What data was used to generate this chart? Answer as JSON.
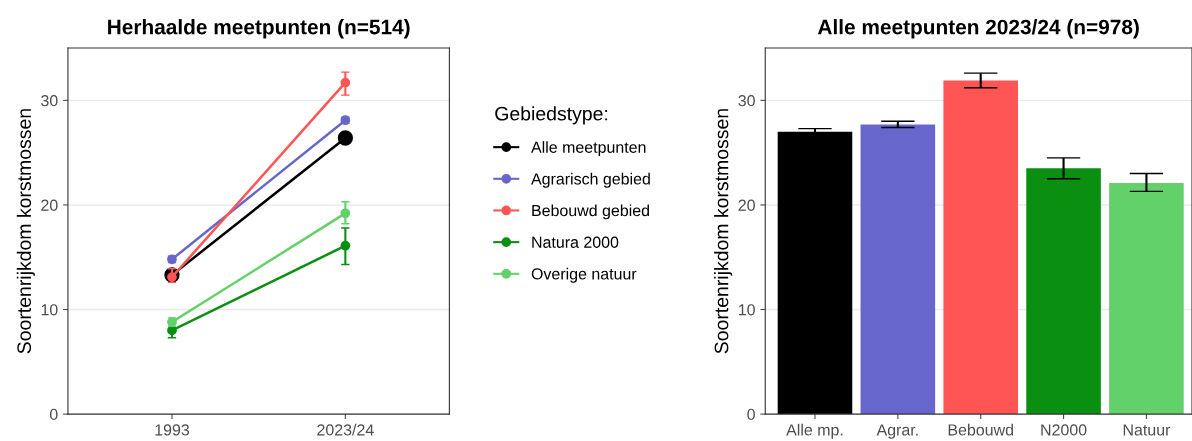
{
  "chart_data": [
    {
      "type": "line",
      "title": "Herhaalde meetpunten (n=514)",
      "ylabel": "Soortenrijkdom korstmossen",
      "categories": [
        "1993",
        "2023/24"
      ],
      "ylim": [
        0,
        35
      ],
      "yticks": [
        0,
        10,
        20,
        30
      ],
      "grid": "y",
      "legend": "right",
      "legend_title": "Gebiedstype:",
      "marker": "circle",
      "line_style": "solid",
      "series": [
        {
          "name": "Alle meetpunten",
          "color": "#000000",
          "values": [
            13.3,
            26.4
          ]
        },
        {
          "name": "Agrarisch gebied",
          "color": "#6666cc",
          "values": [
            14.8,
            28.1
          ],
          "errors": [
            0.3,
            0.3
          ]
        },
        {
          "name": "Bebouwd gebied",
          "color": "#ff5555",
          "values": [
            13.1,
            31.7
          ],
          "errors": [
            [
              12.6,
              13.9
            ],
            [
              30.5,
              32.7
            ]
          ]
        },
        {
          "name": "Natura 2000",
          "color": "#0a8f11",
          "values": [
            8.0,
            16.1
          ],
          "errors": [
            [
              7.3,
              8.8
            ],
            [
              14.3,
              17.8
            ]
          ]
        },
        {
          "name": "Overige natuur",
          "color": "#62d16a",
          "values": [
            8.8,
            19.2
          ],
          "errors": [
            [
              8.4,
              9.2
            ],
            [
              18.2,
              20.3
            ]
          ]
        }
      ]
    },
    {
      "type": "bar",
      "title": "Alle meetpunten 2023/24 (n=978)",
      "ylabel": "Soortenrijkdom korstmossen",
      "categories": [
        "Alle mp.",
        "Agrar.",
        "Bebouwd",
        "N2000",
        "Natuur"
      ],
      "ylim": [
        0,
        35
      ],
      "yticks": [
        0,
        10,
        20,
        30
      ],
      "grid": "y",
      "values": [
        27.0,
        27.7,
        31.9,
        23.5,
        22.1
      ],
      "colors": [
        "#000000",
        "#6666cc",
        "#ff5555",
        "#0a8f11",
        "#62d16a"
      ],
      "errors": [
        [
          26.7,
          27.3
        ],
        [
          27.4,
          28.0
        ],
        [
          31.2,
          32.6
        ],
        [
          22.5,
          24.5
        ],
        [
          21.3,
          23.0
        ]
      ]
    }
  ]
}
